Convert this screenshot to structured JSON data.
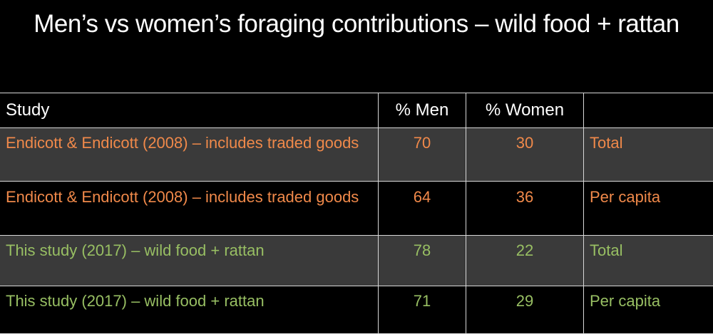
{
  "slide": {
    "title": "Men’s vs women’s foraging contributions – wild food + rattan"
  },
  "table": {
    "headers": [
      "Study",
      "% Men",
      "% Women",
      ""
    ],
    "rows": [
      {
        "study": "Endicott & Endicott (2008) – includes traded goods",
        "men": "70",
        "women": "30",
        "basis": "Total",
        "color": "#f0894a"
      },
      {
        "study": "Endicott & Endicott (2008) – includes traded goods",
        "men": "64",
        "women": "36",
        "basis": "Per capita",
        "color": "#f0894a"
      },
      {
        "study": "This study (2017) – wild food + rattan",
        "men": "78",
        "women": "22",
        "basis": "Total",
        "color": "#98bf63"
      },
      {
        "study": "This study (2017) – wild food + rattan",
        "men": "71",
        "women": "29",
        "basis": "Per capita",
        "color": "#98bf63"
      }
    ]
  },
  "colors": {
    "background": "#000000",
    "shaded_row": "#3a3a3a",
    "grid_line": "#d8d8d8",
    "orange_text": "#f0894a",
    "green_text": "#98bf63"
  }
}
